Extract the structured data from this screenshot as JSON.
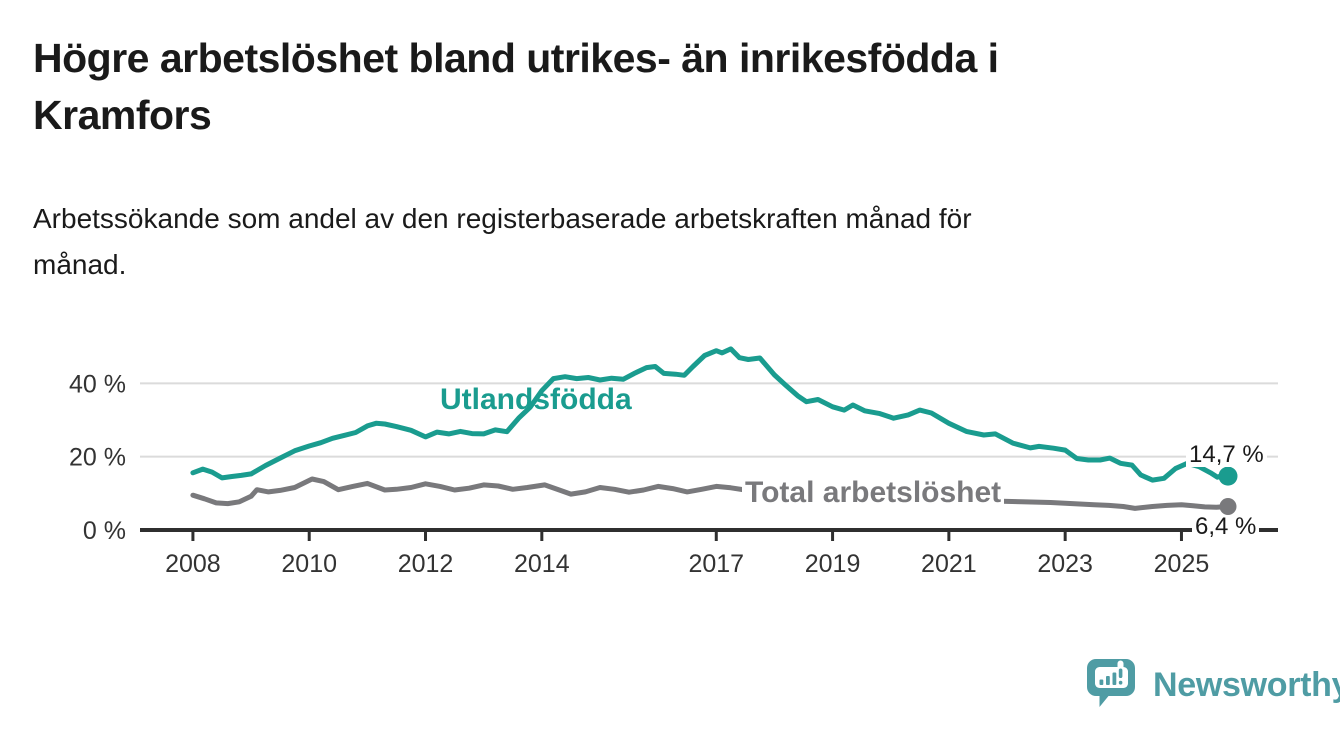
{
  "header": {
    "title_lines": [
      "Högre arbetslöshet bland utrikes- än inrikesfödda i",
      "Kramfors"
    ],
    "subtitle_lines": [
      "Arbetssökande som andel av den registerbaserade arbetskraften månad för",
      "månad."
    ]
  },
  "chart_data": {
    "type": "line",
    "title": "Högre arbetslöshet bland utrikes- än inrikesfödda i Kramfors",
    "subtitle": "Arbetssökande som andel av den registerbaserade arbetskraften månad för månad.",
    "unit": "%",
    "grid": "horizontal-only",
    "x_axis": {
      "min": 2007.09,
      "max": 2026.66,
      "ticks": [
        {
          "year": 2008,
          "label": "2008"
        },
        {
          "year": 2010,
          "label": "2010"
        },
        {
          "year": 2012,
          "label": "2012"
        },
        {
          "year": 2014,
          "label": "2014"
        },
        {
          "year": 2017,
          "label": "2017"
        },
        {
          "year": 2019,
          "label": "2019"
        },
        {
          "year": 2021,
          "label": "2021"
        },
        {
          "year": 2023,
          "label": "2023"
        },
        {
          "year": 2025,
          "label": "2025"
        }
      ]
    },
    "y_axis": {
      "min": 0,
      "max": 52,
      "ticks": [
        {
          "value": 0,
          "label": "0 %"
        },
        {
          "value": 20,
          "label": "20 %"
        },
        {
          "value": 40,
          "label": "40 %"
        }
      ],
      "gridline_values": [
        20,
        40
      ]
    },
    "colors": {
      "teal_series": "#1a9c8f",
      "gray_series": "#79797c",
      "axis": "#2f2f2f",
      "gridline": "#dbdbdb",
      "tick_label": "#333333"
    },
    "series": [
      {
        "name": "Utlandsfödda",
        "color": "#1a9c8f",
        "end_label": "14,7 %",
        "end_value": 14.7,
        "points": [
          [
            2008,
            15.6
          ],
          [
            2008.17,
            16.6
          ],
          [
            2008.33,
            15.8
          ],
          [
            2008.5,
            14.2
          ],
          [
            2008.67,
            14.6
          ],
          [
            2008.83,
            14.9
          ],
          [
            2009,
            15.3
          ],
          [
            2009.25,
            17.6
          ],
          [
            2009.5,
            19.6
          ],
          [
            2009.75,
            21.6
          ],
          [
            2010,
            22.9
          ],
          [
            2010.2,
            23.8
          ],
          [
            2010.4,
            25
          ],
          [
            2010.6,
            25.8
          ],
          [
            2010.8,
            26.6
          ],
          [
            2011,
            28.4
          ],
          [
            2011.15,
            29.1
          ],
          [
            2011.3,
            28.9
          ],
          [
            2011.5,
            28.2
          ],
          [
            2011.75,
            27.2
          ],
          [
            2012,
            25.4
          ],
          [
            2012.2,
            26.7
          ],
          [
            2012.4,
            26.2
          ],
          [
            2012.6,
            26.9
          ],
          [
            2012.8,
            26.3
          ],
          [
            2013,
            26.2
          ],
          [
            2013.2,
            27.3
          ],
          [
            2013.4,
            26.8
          ],
          [
            2013.6,
            30.5
          ],
          [
            2013.8,
            33.5
          ],
          [
            2014,
            38
          ],
          [
            2014.2,
            41.3
          ],
          [
            2014.4,
            41.8
          ],
          [
            2014.6,
            41.3
          ],
          [
            2014.8,
            41.6
          ],
          [
            2015,
            40.9
          ],
          [
            2015.2,
            41.4
          ],
          [
            2015.4,
            41.1
          ],
          [
            2015.6,
            42.8
          ],
          [
            2015.8,
            44.3
          ],
          [
            2015.95,
            44.6
          ],
          [
            2016.1,
            42.7
          ],
          [
            2016.3,
            42.5
          ],
          [
            2016.45,
            42.2
          ],
          [
            2016.6,
            44.6
          ],
          [
            2016.8,
            47.6
          ],
          [
            2017,
            48.9
          ],
          [
            2017.1,
            48.3
          ],
          [
            2017.25,
            49.4
          ],
          [
            2017.4,
            47
          ],
          [
            2017.55,
            46.5
          ],
          [
            2017.75,
            46.9
          ],
          [
            2018,
            42.3
          ],
          [
            2018.2,
            39.4
          ],
          [
            2018.4,
            36.6
          ],
          [
            2018.55,
            35
          ],
          [
            2018.75,
            35.6
          ],
          [
            2019,
            33.6
          ],
          [
            2019.2,
            32.7
          ],
          [
            2019.35,
            34.1
          ],
          [
            2019.55,
            32.5
          ],
          [
            2019.8,
            31.8
          ],
          [
            2020.05,
            30.5
          ],
          [
            2020.3,
            31.4
          ],
          [
            2020.5,
            32.7
          ],
          [
            2020.7,
            31.9
          ],
          [
            2021,
            29.1
          ],
          [
            2021.3,
            26.9
          ],
          [
            2021.6,
            25.9
          ],
          [
            2021.8,
            26.2
          ],
          [
            2022.1,
            23.7
          ],
          [
            2022.4,
            22.4
          ],
          [
            2022.55,
            22.8
          ],
          [
            2022.8,
            22.3
          ],
          [
            2023,
            21.8
          ],
          [
            2023.2,
            19.5
          ],
          [
            2023.4,
            19.1
          ],
          [
            2023.6,
            19.1
          ],
          [
            2023.77,
            19.6
          ],
          [
            2023.95,
            18.2
          ],
          [
            2024.15,
            17.7
          ],
          [
            2024.3,
            15
          ],
          [
            2024.5,
            13.6
          ],
          [
            2024.7,
            14.1
          ],
          [
            2024.9,
            16.8
          ],
          [
            2025.1,
            18.2
          ],
          [
            2025.3,
            17.3
          ],
          [
            2025.5,
            15.6
          ],
          [
            2025.62,
            14.4
          ],
          [
            2025.72,
            15
          ],
          [
            2025.8,
            14.7
          ]
        ]
      },
      {
        "name": "Total arbetslöshet",
        "color": "#79797c",
        "end_label": "6,4 %",
        "end_value": 6.4,
        "points": [
          [
            2008,
            9.5
          ],
          [
            2008.2,
            8.5
          ],
          [
            2008.4,
            7.4
          ],
          [
            2008.6,
            7.2
          ],
          [
            2008.8,
            7.7
          ],
          [
            2009,
            9.2
          ],
          [
            2009.1,
            11
          ],
          [
            2009.3,
            10.4
          ],
          [
            2009.5,
            10.8
          ],
          [
            2009.75,
            11.6
          ],
          [
            2010.05,
            13.9
          ],
          [
            2010.25,
            13.2
          ],
          [
            2010.5,
            11
          ],
          [
            2010.75,
            11.9
          ],
          [
            2011,
            12.7
          ],
          [
            2011.3,
            10.9
          ],
          [
            2011.5,
            11.1
          ],
          [
            2011.75,
            11.6
          ],
          [
            2012,
            12.6
          ],
          [
            2012.25,
            11.9
          ],
          [
            2012.5,
            10.9
          ],
          [
            2012.75,
            11.4
          ],
          [
            2013,
            12.3
          ],
          [
            2013.25,
            12
          ],
          [
            2013.5,
            11.1
          ],
          [
            2013.75,
            11.6
          ],
          [
            2014.05,
            12.3
          ],
          [
            2014.3,
            10.9
          ],
          [
            2014.5,
            9.8
          ],
          [
            2014.75,
            10.4
          ],
          [
            2015,
            11.6
          ],
          [
            2015.25,
            11.1
          ],
          [
            2015.5,
            10.3
          ],
          [
            2015.75,
            10.9
          ],
          [
            2016,
            11.9
          ],
          [
            2016.25,
            11.3
          ],
          [
            2016.5,
            10.4
          ],
          [
            2016.75,
            11.1
          ],
          [
            2017,
            11.9
          ],
          [
            2017.25,
            11.5
          ],
          [
            2017.5,
            10.9
          ],
          [
            2017.75,
            10.7
          ],
          [
            2018,
            10.9
          ],
          [
            2018.25,
            10.2
          ],
          [
            2018.5,
            9.7
          ],
          [
            2018.75,
            10
          ],
          [
            2019,
            10.3
          ],
          [
            2019.25,
            9.7
          ],
          [
            2019.5,
            9.1
          ],
          [
            2019.75,
            9.4
          ],
          [
            2020,
            9.8
          ],
          [
            2020.25,
            9.5
          ],
          [
            2020.5,
            9.1
          ],
          [
            2020.75,
            8.8
          ],
          [
            2021,
            8.5
          ],
          [
            2021.25,
            8.2
          ],
          [
            2021.5,
            8
          ],
          [
            2021.75,
            7.9
          ],
          [
            2022,
            7.8
          ],
          [
            2022.25,
            7.7
          ],
          [
            2022.5,
            7.6
          ],
          [
            2022.75,
            7.5
          ],
          [
            2023,
            7.3
          ],
          [
            2023.25,
            7.1
          ],
          [
            2023.5,
            6.9
          ],
          [
            2023.75,
            6.7
          ],
          [
            2024,
            6.4
          ],
          [
            2024.2,
            5.9
          ],
          [
            2024.5,
            6.4
          ],
          [
            2024.75,
            6.7
          ],
          [
            2025,
            6.9
          ],
          [
            2025.2,
            6.6
          ],
          [
            2025.4,
            6.3
          ],
          [
            2025.6,
            6.2
          ],
          [
            2025.8,
            6.4
          ]
        ]
      }
    ],
    "legend_position": "inline-labels"
  },
  "footer": {
    "brand": "Newsworthy"
  }
}
